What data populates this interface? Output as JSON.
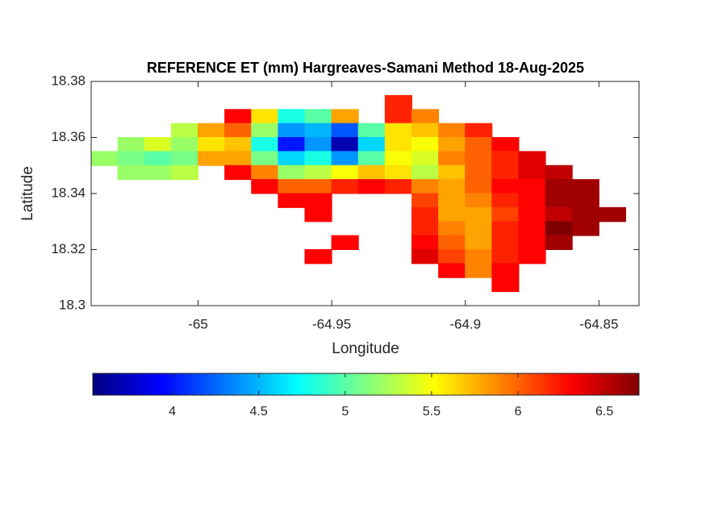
{
  "chart_data": {
    "type": "contourf",
    "title": "REFERENCE ET (mm) Hargreaves-Samani Method  18-Aug-2025",
    "xlabel": "Longitude",
    "ylabel": "Latitude",
    "xlim": [
      -65.04,
      -64.835
    ],
    "ylim": [
      18.3,
      18.38
    ],
    "xticks": [
      -65,
      -64.95,
      -64.9,
      -64.85
    ],
    "yticks": [
      18.3,
      18.32,
      18.34,
      18.36,
      18.38
    ],
    "colormap": "jet",
    "clim": [
      3.54,
      6.7
    ],
    "cticks": [
      4,
      4.5,
      5,
      5.5,
      6,
      6.5
    ],
    "x": [
      -65.035,
      -65.025,
      -65.015,
      -65.005,
      -64.995,
      -64.985,
      -64.975,
      -64.965,
      -64.955,
      -64.945,
      -64.935,
      -64.925,
      -64.915,
      -64.905,
      -64.895,
      -64.885,
      -64.875,
      -64.865,
      -64.855,
      -64.845,
      -64.835
    ],
    "y": [
      18.3775,
      18.3725,
      18.3675,
      18.3625,
      18.3575,
      18.3525,
      18.3475,
      18.3425,
      18.3375,
      18.3325,
      18.3275,
      18.3225,
      18.3175,
      18.3125,
      18.3075,
      18.3025
    ],
    "z": [
      [
        null,
        null,
        null,
        null,
        null,
        null,
        null,
        null,
        null,
        null,
        null,
        null,
        null,
        null,
        null,
        null,
        null,
        null,
        null,
        null,
        null
      ],
      [
        null,
        null,
        null,
        null,
        null,
        null,
        null,
        null,
        null,
        null,
        null,
        6.2,
        null,
        null,
        null,
        null,
        null,
        null,
        null,
        null,
        null
      ],
      [
        null,
        null,
        null,
        null,
        null,
        6.3,
        5.6,
        4.8,
        5.0,
        5.8,
        null,
        6.2,
        5.9,
        null,
        null,
        null,
        null,
        null,
        null,
        null,
        null
      ],
      [
        null,
        null,
        null,
        5.3,
        5.8,
        6.0,
        5.2,
        4.4,
        4.5,
        4.2,
        5.0,
        5.6,
        5.7,
        5.9,
        6.2,
        null,
        null,
        null,
        null,
        null,
        null
      ],
      [
        null,
        5.2,
        5.4,
        5.2,
        5.6,
        5.7,
        4.8,
        4.0,
        4.4,
        3.7,
        4.6,
        5.6,
        5.5,
        5.8,
        6.0,
        6.3,
        null,
        null,
        null,
        null,
        null
      ],
      [
        5.2,
        5.1,
        5.0,
        5.1,
        5.8,
        5.8,
        5.1,
        4.6,
        4.8,
        4.4,
        5.0,
        5.5,
        5.4,
        5.9,
        6.0,
        6.2,
        6.4,
        null,
        null,
        null,
        null
      ],
      [
        null,
        5.2,
        5.2,
        5.3,
        null,
        6.3,
        5.9,
        5.2,
        5.3,
        5.5,
        5.7,
        5.6,
        5.3,
        5.7,
        6.0,
        6.2,
        6.4,
        6.5,
        null,
        null,
        null
      ],
      [
        null,
        null,
        null,
        null,
        null,
        null,
        6.3,
        6.0,
        6.0,
        6.2,
        6.3,
        6.2,
        5.9,
        5.8,
        6.0,
        6.3,
        6.3,
        6.6,
        6.6,
        null,
        null
      ],
      [
        null,
        null,
        null,
        null,
        null,
        null,
        null,
        6.3,
        6.3,
        null,
        null,
        null,
        6.1,
        5.8,
        5.9,
        6.2,
        6.3,
        6.6,
        6.6,
        null,
        null
      ],
      [
        null,
        null,
        null,
        null,
        null,
        null,
        null,
        null,
        6.3,
        null,
        null,
        null,
        6.2,
        5.8,
        5.8,
        6.1,
        6.3,
        6.5,
        6.6,
        6.6,
        null
      ],
      [
        null,
        null,
        null,
        null,
        null,
        null,
        null,
        null,
        null,
        null,
        null,
        null,
        6.2,
        5.9,
        5.8,
        6.2,
        6.3,
        6.7,
        6.6,
        null,
        null
      ],
      [
        null,
        null,
        null,
        null,
        null,
        null,
        null,
        null,
        null,
        6.3,
        null,
        null,
        6.3,
        6.0,
        5.8,
        6.2,
        6.3,
        6.6,
        null,
        null,
        null
      ],
      [
        null,
        null,
        null,
        null,
        null,
        null,
        null,
        null,
        6.3,
        null,
        null,
        null,
        6.4,
        6.1,
        5.9,
        6.2,
        6.3,
        null,
        null,
        null,
        null
      ],
      [
        null,
        null,
        null,
        null,
        null,
        null,
        null,
        null,
        null,
        null,
        null,
        null,
        null,
        6.3,
        5.9,
        6.3,
        null,
        null,
        null,
        null,
        null
      ],
      [
        null,
        null,
        null,
        null,
        null,
        null,
        null,
        null,
        null,
        null,
        null,
        null,
        null,
        null,
        null,
        6.3,
        null,
        null,
        null,
        null,
        null
      ],
      [
        null,
        null,
        null,
        null,
        null,
        null,
        null,
        null,
        null,
        null,
        null,
        null,
        null,
        null,
        null,
        null,
        null,
        null,
        null,
        null,
        null
      ]
    ]
  }
}
